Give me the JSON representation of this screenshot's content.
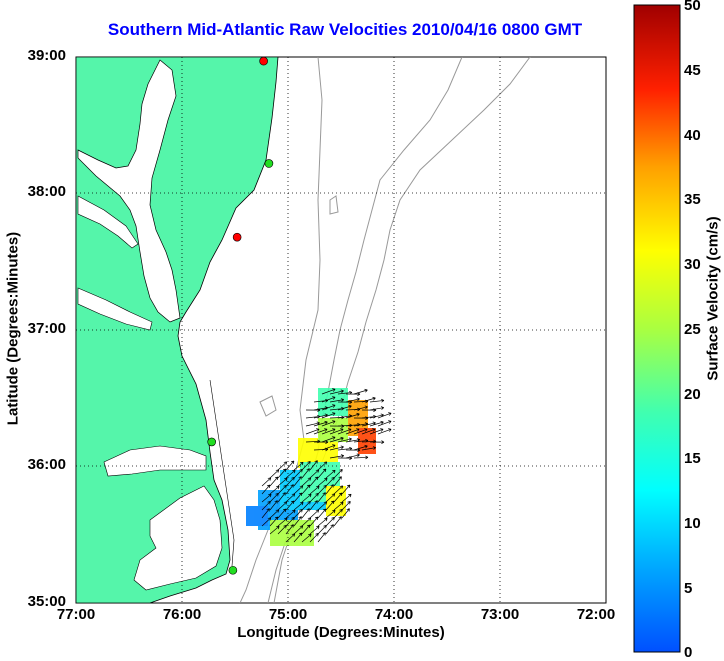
{
  "title": "Southern Mid-Atlantic Raw Velocities 2010/04/16 0800 GMT",
  "axes": {
    "xlabel": "Longitude (Degrees:Minutes)",
    "ylabel": "Latitude (Degrees:Minutes)",
    "lon_ticks": [
      "77:00",
      "76:00",
      "75:00",
      "74:00",
      "73:00",
      "72:00"
    ],
    "lat_ticks": [
      "39:00",
      "38:00",
      "37:00",
      "36:00",
      "35:00"
    ],
    "lon_range": [
      -77,
      -72
    ],
    "lat_range": [
      35,
      39
    ],
    "grid": "dotted"
  },
  "colorbar": {
    "label": "Surface Velocity (cm/s)",
    "ticks": [
      "50",
      "45",
      "40",
      "35",
      "30",
      "25",
      "20",
      "15",
      "10",
      "5",
      "0"
    ],
    "range": [
      0,
      50
    ],
    "colormap": "jet"
  },
  "colors": {
    "land": "#55f5aa",
    "title": "#0000ff",
    "bathymetry": "#999999"
  },
  "stations": [
    {
      "lat": 38.97,
      "lon": -75.23,
      "color": "#ff0000"
    },
    {
      "lat": 38.22,
      "lon": -75.18,
      "color": "#22dd22"
    },
    {
      "lat": 37.68,
      "lon": -75.48,
      "color": "#ff0000"
    },
    {
      "lat": 36.18,
      "lon": -75.72,
      "color": "#22dd22"
    },
    {
      "lat": 35.24,
      "lon": -75.52,
      "color": "#22dd22"
    }
  ]
}
